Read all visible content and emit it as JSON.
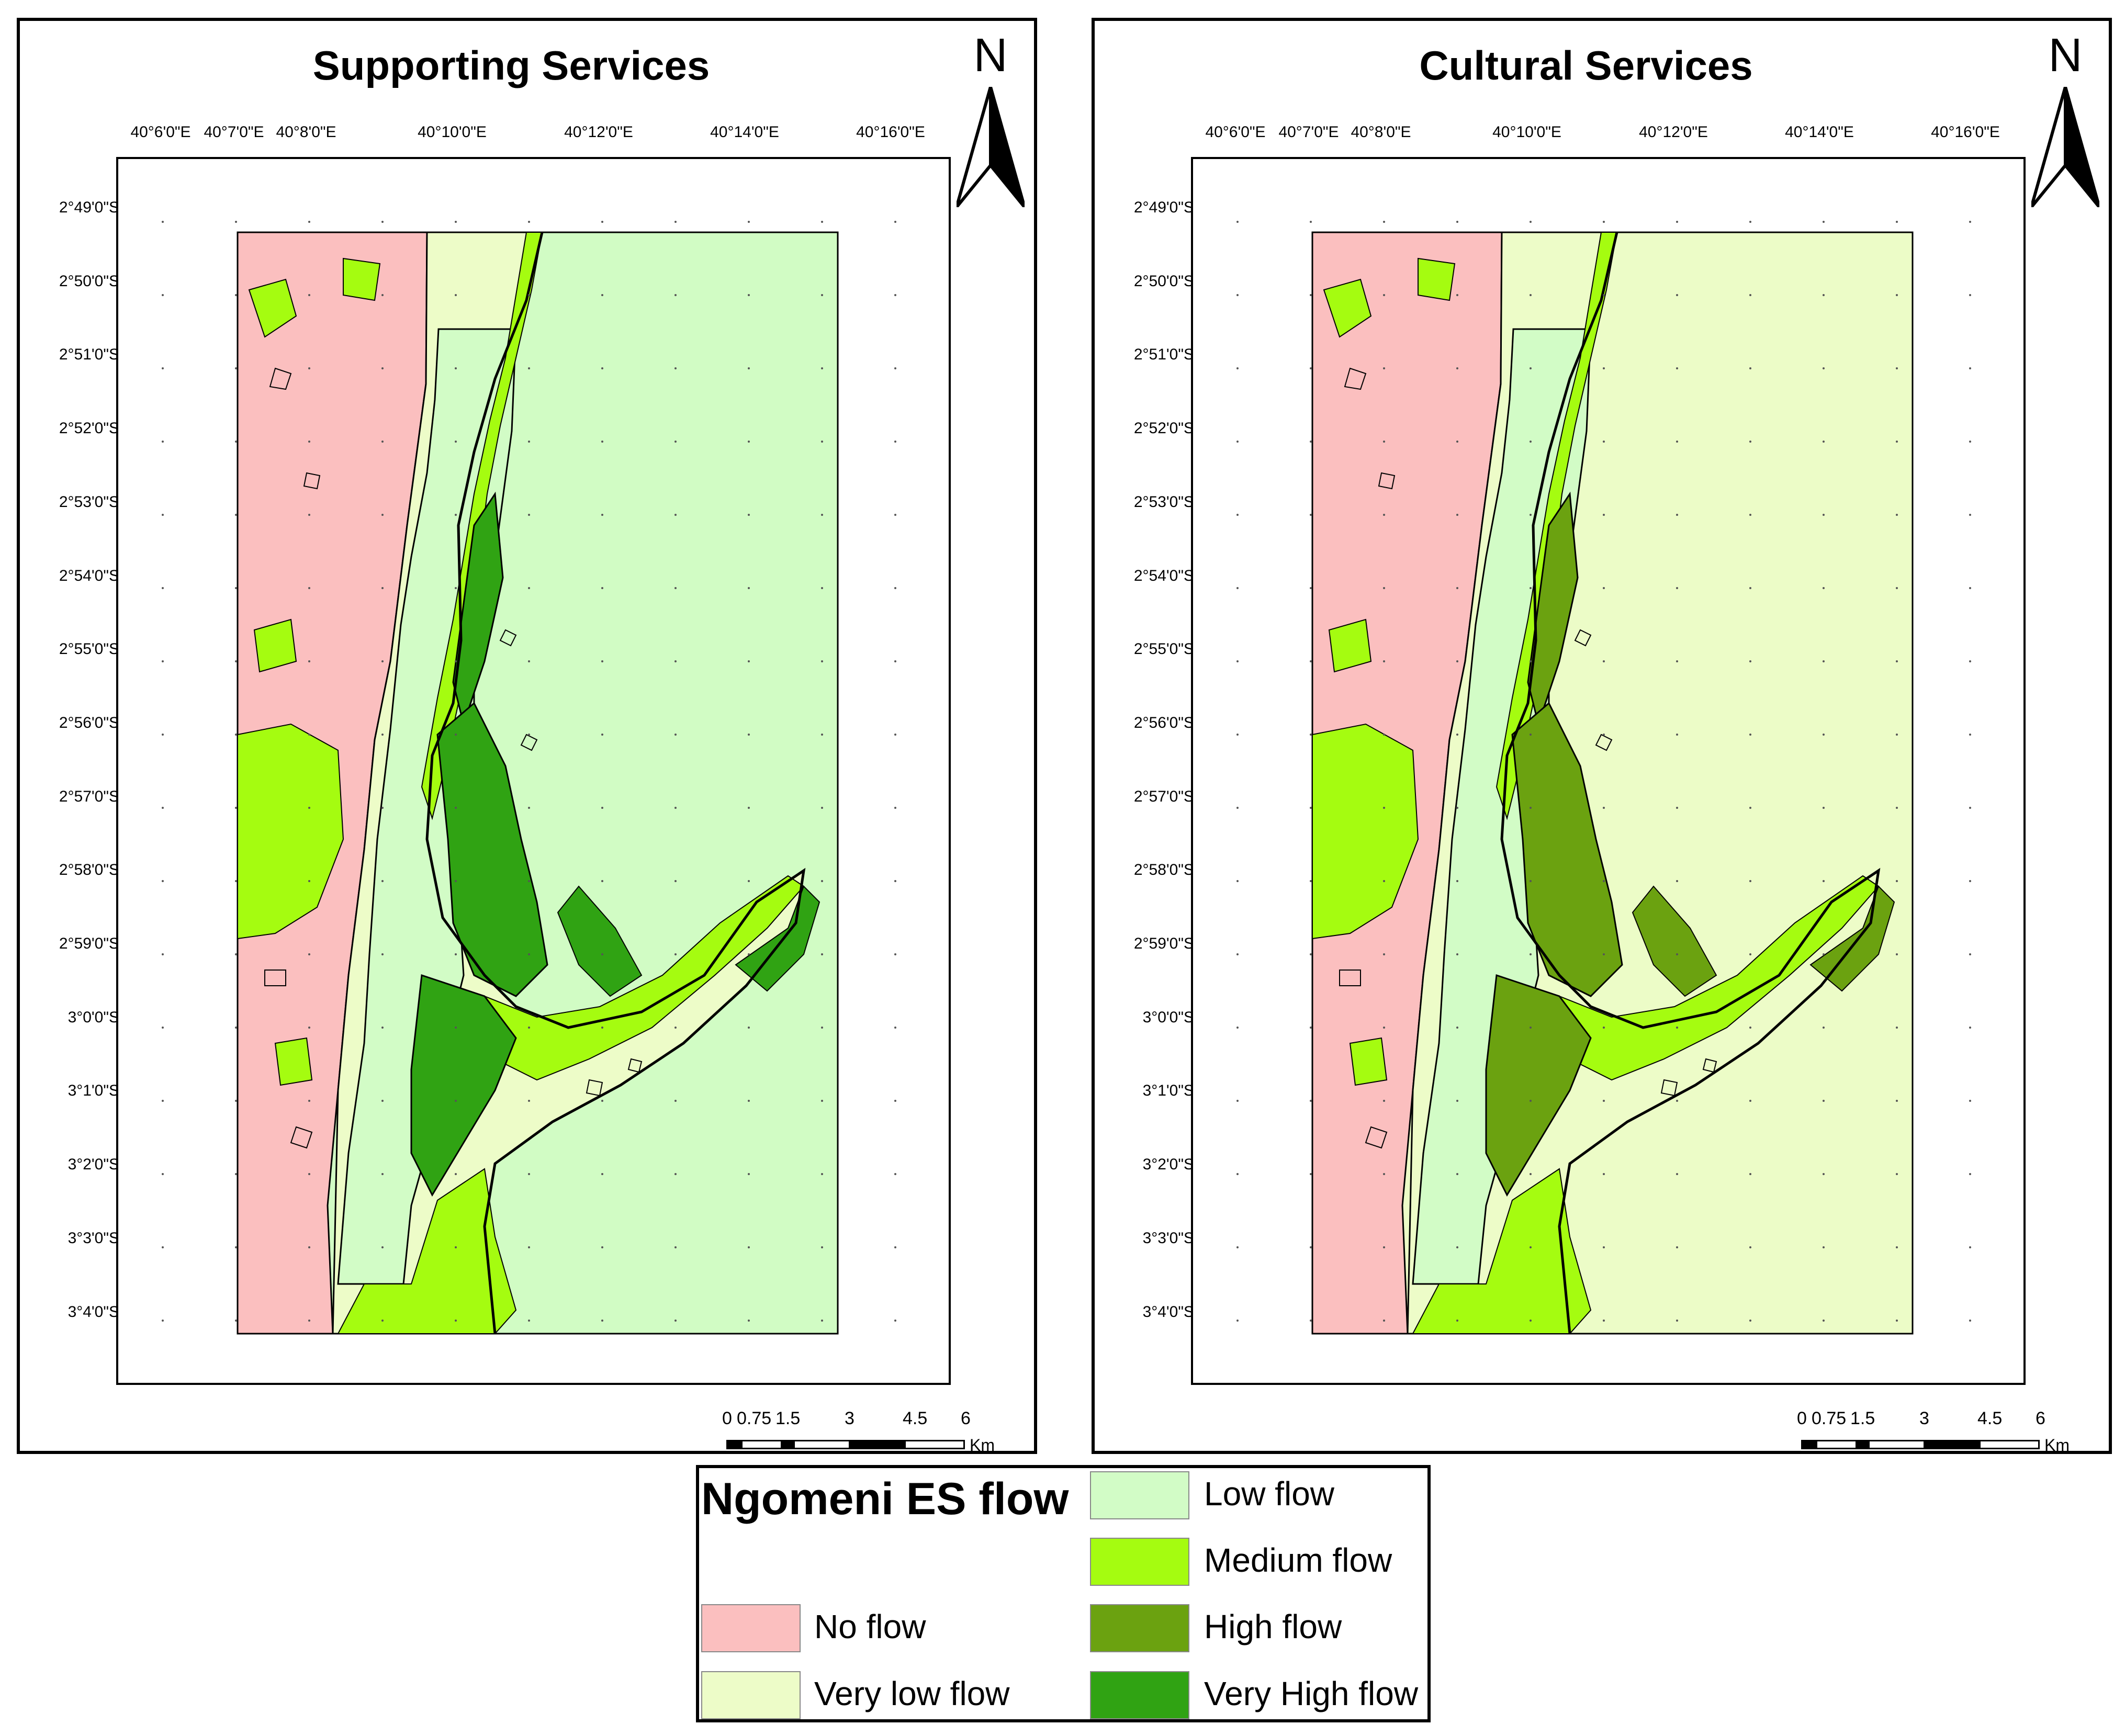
{
  "panels": [
    {
      "title": "Supporting Services",
      "ocean_color": "#d1fcc4",
      "wetland_color": "#30a313",
      "north_label": "N"
    },
    {
      "title": "Cultural Services",
      "ocean_color": "#ecfcc7",
      "wetland_color": "#6ba210",
      "north_label": "N"
    }
  ],
  "x_ticks": [
    "40°6'0\"E",
    "40°7'0\"E",
    "40°8'0\"E",
    "40°10'0\"E",
    "40°12'0\"E",
    "40°14'0\"E",
    "40°16'0\"E"
  ],
  "y_ticks": [
    "2°49'0\"S",
    "2°50'0\"S",
    "2°51'0\"S",
    "2°52'0\"S",
    "2°53'0\"S",
    "2°54'0\"S",
    "2°55'0\"S",
    "2°56'0\"S",
    "2°57'0\"S",
    "2°58'0\"S",
    "2°59'0\"S",
    "3°0'0\"S",
    "3°1'0\"S",
    "3°2'0\"S",
    "3°3'0\"S",
    "3°4'0\"S"
  ],
  "scale": {
    "labels": [
      "0",
      "0.75",
      "1.5",
      "3",
      "4.5",
      "6"
    ],
    "unit": "Km"
  },
  "legend": {
    "title": "Ngomeni ES flow",
    "items": [
      {
        "label": "No flow",
        "color": "#fbbfbf"
      },
      {
        "label": "Very low flow",
        "color": "#edfcc8"
      },
      {
        "label": "Low flow",
        "color": "#d2fcc6"
      },
      {
        "label": "Medium flow",
        "color": "#a5fc10"
      },
      {
        "label": "High flow",
        "color": "#6ba210"
      },
      {
        "label": "Very High flow",
        "color": "#30a313"
      }
    ]
  }
}
